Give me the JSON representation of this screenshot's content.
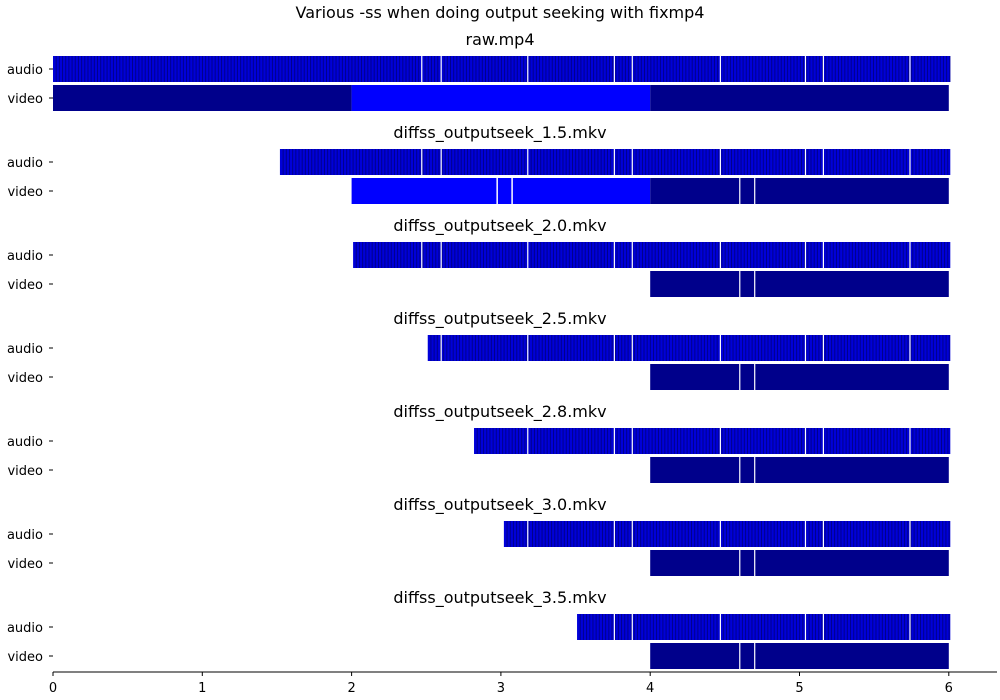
{
  "chart_data": {
    "type": "timeline",
    "title": "Various -ss when doing output seeking with fixmp4",
    "xlim": [
      0,
      6.3
    ],
    "xticks": [
      0,
      1,
      2,
      3,
      4,
      5,
      6
    ],
    "xtick_labels": [
      "0",
      "1",
      "2",
      "3",
      "4",
      "5",
      "6"
    ],
    "row_labels": [
      "audio",
      "video"
    ],
    "colors": {
      "audio_fill": "#0000d8",
      "audio_line": "#00008c",
      "video_dark": "#00008b",
      "video_bright": "#0000ff",
      "gap": "#ffffff"
    },
    "audio_breaks": [
      2.47,
      2.6,
      3.18,
      3.76,
      3.88,
      4.47,
      5.04,
      5.16,
      5.74
    ],
    "video_breaks": [
      4.6,
      4.7
    ],
    "panels": [
      {
        "title": "raw.mp4",
        "audio": {
          "start": 0.0,
          "end": 6.01
        },
        "video": [
          {
            "start": 0.0,
            "end": 2.0,
            "color": "dark"
          },
          {
            "start": 2.0,
            "end": 4.0,
            "color": "bright"
          },
          {
            "start": 4.0,
            "end": 6.0,
            "color": "dark"
          }
        ]
      },
      {
        "title": "diffss_outputseek_1.5.mkv",
        "audio": {
          "start": 1.52,
          "end": 6.01
        },
        "video": [
          {
            "start": 2.0,
            "end": 2.97,
            "color": "bright"
          },
          {
            "start": 2.98,
            "end": 3.07,
            "color": "bright"
          },
          {
            "start": 3.08,
            "end": 4.0,
            "color": "bright"
          },
          {
            "start": 4.0,
            "end": 6.0,
            "color": "dark"
          }
        ]
      },
      {
        "title": "diffss_outputseek_2.0.mkv",
        "audio": {
          "start": 2.01,
          "end": 6.01
        },
        "video": [
          {
            "start": 4.0,
            "end": 6.0,
            "color": "dark"
          }
        ]
      },
      {
        "title": "diffss_outputseek_2.5.mkv",
        "audio": {
          "start": 2.51,
          "end": 6.01
        },
        "video": [
          {
            "start": 4.0,
            "end": 6.0,
            "color": "dark"
          }
        ]
      },
      {
        "title": "diffss_outputseek_2.8.mkv",
        "audio": {
          "start": 2.82,
          "end": 6.01
        },
        "video": [
          {
            "start": 4.0,
            "end": 6.0,
            "color": "dark"
          }
        ]
      },
      {
        "title": "diffss_outputseek_3.0.mkv",
        "audio": {
          "start": 3.02,
          "end": 6.01
        },
        "video": [
          {
            "start": 4.0,
            "end": 6.0,
            "color": "dark"
          }
        ]
      },
      {
        "title": "diffss_outputseek_3.5.mkv",
        "audio": {
          "start": 3.51,
          "end": 6.01
        },
        "video": [
          {
            "start": 4.0,
            "end": 6.0,
            "color": "dark"
          }
        ]
      }
    ]
  }
}
